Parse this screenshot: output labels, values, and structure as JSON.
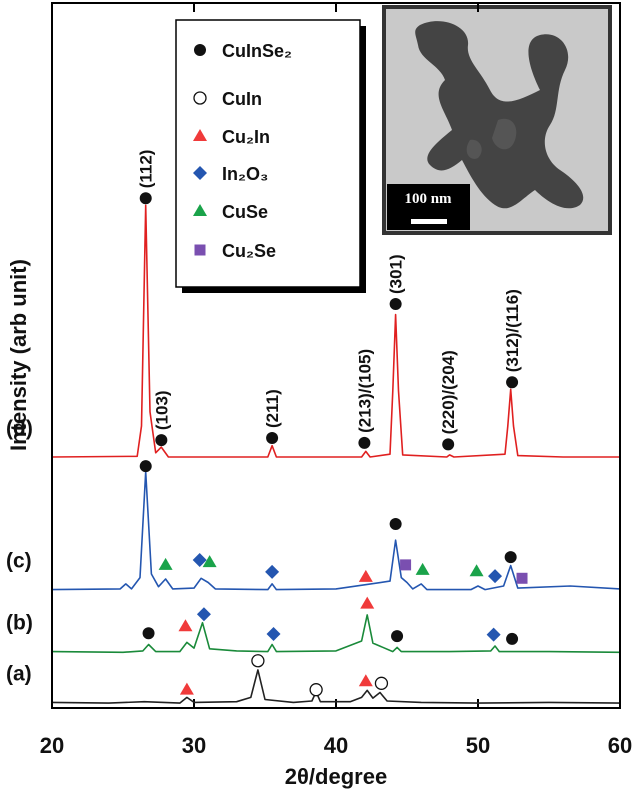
{
  "chart_data": {
    "type": "line",
    "xlabel": "2θ/degree",
    "ylabel": "Intensity (arb unit)",
    "xlim": [
      20,
      60
    ],
    "xticks": [
      20,
      30,
      40,
      50,
      60
    ],
    "ylim": [
      0,
      100
    ],
    "series": [
      {
        "name": "(a)",
        "color": "#222222",
        "x": [
          20,
          24,
          26.5,
          29,
          29.5,
          30,
          33,
          34,
          34.5,
          35,
          37,
          38.3,
          38.6,
          38.9,
          41,
          41.8,
          42.2,
          42.6,
          43.1,
          43.6,
          46,
          50,
          55,
          60
        ],
        "values": [
          0.8,
          0.7,
          0.9,
          0.7,
          1.5,
          0.8,
          0.9,
          1.5,
          5.4,
          1.2,
          0.8,
          1.0,
          2.3,
          0.9,
          0.9,
          1.5,
          2.5,
          1.4,
          2.2,
          1.0,
          0.8,
          0.7,
          0.8,
          0.7
        ]
      },
      {
        "name": "(b)",
        "color": "#1a8a3a",
        "x": [
          20,
          25,
          26.4,
          26.8,
          27.3,
          29,
          29.5,
          30,
          30.6,
          31.1,
          33,
          35.2,
          35.5,
          35.8,
          40,
          41.8,
          42.2,
          42.6,
          44,
          44.3,
          44.6,
          48,
          50.9,
          51.2,
          51.5,
          55,
          60
        ],
        "values": [
          8,
          7.9,
          8.1,
          9.0,
          8.0,
          8.0,
          9.3,
          8.5,
          12.1,
          8.4,
          8.1,
          8.0,
          9.0,
          8.0,
          8.1,
          9.5,
          13.2,
          9.2,
          8.0,
          8.6,
          8.0,
          8.0,
          8.1,
          8.8,
          8.0,
          8.0,
          7.9
        ]
      },
      {
        "name": "(c)",
        "color": "#2456b0",
        "x": [
          20,
          24.8,
          25.2,
          25.6,
          26.2,
          26.6,
          27,
          27.5,
          28,
          28.5,
          30,
          30.5,
          31,
          31.5,
          35.2,
          35.5,
          35.8,
          40,
          43.8,
          44.2,
          44.6,
          45,
          45.4,
          46,
          46.4,
          49.5,
          50,
          50.5,
          51.8,
          52.3,
          52.8,
          56.5,
          60
        ],
        "values": [
          16.8,
          16.9,
          17.6,
          16.9,
          18.5,
          33.5,
          19,
          17.2,
          18.3,
          16.9,
          17,
          18.4,
          17.8,
          16.9,
          16.8,
          17.6,
          16.8,
          16.9,
          18,
          23.8,
          18.5,
          17.8,
          16.9,
          17.6,
          16.8,
          16.8,
          17.3,
          16.8,
          17.3,
          20.2,
          17,
          17.3,
          16.9
        ]
      },
      {
        "name": "(d)",
        "color": "#e02020",
        "x": [
          20,
          26,
          26.3,
          26.6,
          26.9,
          27.3,
          27.7,
          28.2,
          35.2,
          35.5,
          35.8,
          41.8,
          42.1,
          42.4,
          43.8,
          44,
          44.2,
          44.4,
          44.7,
          47.8,
          48,
          48.3,
          51.9,
          52.1,
          52.3,
          52.5,
          52.8,
          56,
          60
        ],
        "values": [
          35.6,
          35.7,
          40,
          71.3,
          42,
          36.2,
          37.0,
          35.6,
          35.6,
          37.2,
          35.6,
          35.6,
          36.4,
          35.6,
          36,
          45,
          55.8,
          45,
          35.9,
          35.6,
          35.9,
          35.6,
          36,
          40,
          45.2,
          40,
          35.8,
          35.6,
          35.6
        ]
      }
    ],
    "phases": [
      {
        "name": "CuInSe₂",
        "color": "#111111",
        "marker": "circle",
        "x": [
          26.6,
          27.7,
          35.5,
          42,
          44.2,
          47.9,
          52.4,
          26.6,
          44.2,
          52.3,
          26.8,
          44.3,
          52.4
        ],
        "y": [
          72.3,
          38,
          38.3,
          37.6,
          57.3,
          37.4,
          46.2,
          34.3,
          26.1,
          21.4,
          10.6,
          10.2,
          9.8
        ]
      },
      {
        "name": "CuIn",
        "color": "#111111",
        "marker": "open-circle",
        "x": [
          34.5,
          38.6,
          43.2
        ],
        "y": [
          6.7,
          2.6,
          3.5
        ]
      },
      {
        "name": "Cu₂In",
        "color": "#f03a3a",
        "marker": "triangle",
        "x": [
          29.5,
          42.1,
          29.4,
          42.2,
          42.1
        ],
        "y": [
          2.6,
          3.8,
          11.6,
          14.8,
          18.6
        ]
      },
      {
        "name": "In₂O₃",
        "color": "#2456b0",
        "marker": "diamond",
        "x": [
          30.4,
          35.5,
          51.2,
          30.7,
          35.6,
          51.1
        ],
        "y": [
          21,
          19.3,
          18.7,
          13.3,
          10.5,
          10.4
        ]
      },
      {
        "name": "CuSe",
        "color": "#1aa34a",
        "marker": "triangle",
        "x": [
          28,
          31.1,
          46.1,
          49.9
        ],
        "y": [
          20.3,
          20.7,
          19.6,
          19.4
        ]
      },
      {
        "name": "Cu₂Se",
        "color": "#7a4fb0",
        "marker": "square",
        "x": [
          44.9,
          53.1
        ],
        "y": [
          20.3,
          18.4
        ]
      }
    ],
    "peak_labels": [
      "(112)",
      "(103)",
      "(211)",
      "(213)/(105)",
      "(301)",
      "(220)/(204)",
      "(312)/(116)"
    ]
  },
  "inset": {
    "scale_label": "100 nm"
  }
}
